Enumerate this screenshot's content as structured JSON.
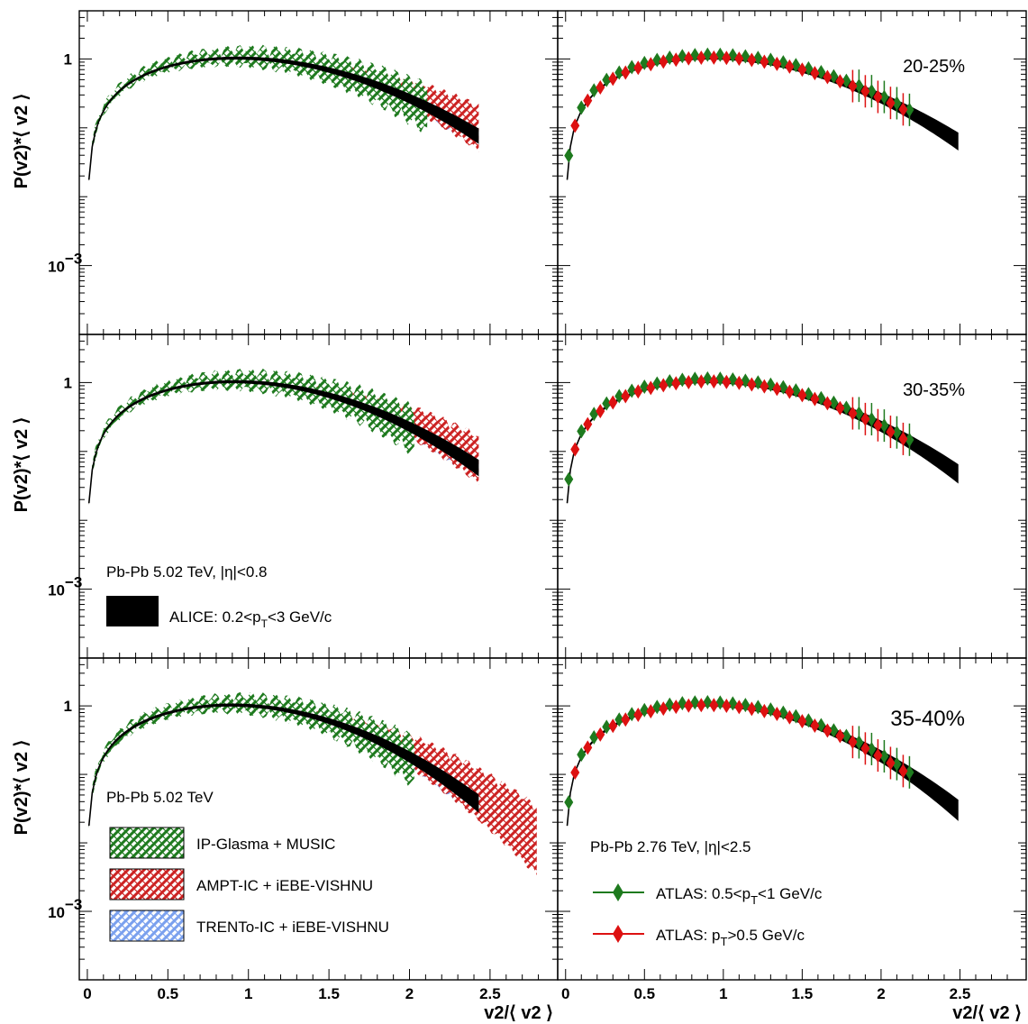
{
  "chart_data": {
    "type": "scatter",
    "log_y": true,
    "xlim": [
      -0.05,
      2.92
    ],
    "ylim": [
      0.0001,
      5
    ],
    "x_ticks": [
      "0",
      "0.5",
      "1",
      "1.5",
      "2",
      "2.5"
    ],
    "y_tick_top": "1",
    "y_tick_bottom": "10",
    "y_tick_bottom_exp": "−3",
    "ylabel": "P(v2)*⟨ v2 ⟩",
    "xlabel": "v2/⟨ v2 ⟩",
    "panels": [
      {
        "row": 0,
        "col": 1,
        "centrality": "20-25%",
        "alice_width": 0.69,
        "atlas_scale": 1.07
      },
      {
        "row": 1,
        "col": 1,
        "centrality": "30-35%",
        "alice_width": 0.66,
        "atlas_scale": 1.06
      },
      {
        "row": 2,
        "col": 1,
        "centrality": "35-40%",
        "alice_width": 0.62,
        "atlas_scale": 1.05
      }
    ],
    "left_panels": [
      {
        "row": 0,
        "alice_width": 0.69,
        "glasma_scale": 1.0
      },
      {
        "row": 1,
        "alice_width": 0.66,
        "glasma_scale": 0.98
      },
      {
        "row": 2,
        "alice_width": 0.62,
        "glasma_scale": 1.02
      }
    ],
    "labels": {
      "mid_left_system": "Pb-Pb 5.02 TeV, |η|<0.8",
      "alice_legend": "ALICE: 0.2<p",
      "alice_legend_sub": "T",
      "alice_legend_tail": "<3 GeV/c",
      "bottom_left_system": "Pb-Pb 5.02 TeV",
      "bottom_right_system": "Pb-Pb 2.76 TeV, |η|<2.5"
    },
    "series": [
      {
        "name": "IP-Glasma + MUSIC",
        "color": "#1e7a1e"
      },
      {
        "name": "AMPT-IC + iEBE-VISHNU",
        "color": "#cc2222"
      },
      {
        "name": "TRENTo-IC + iEBE-VISHNU",
        "color": "#7aa0ee"
      },
      {
        "name": "ATLAS: 0.5<p",
        "sub": "T",
        "tail": "<1 GeV/c",
        "color": "#1e7a1e"
      },
      {
        "name": "ATLAS: p",
        "sub": "T",
        "tail": ">0.5 GeV/c",
        "color": "#dd1111"
      }
    ]
  }
}
